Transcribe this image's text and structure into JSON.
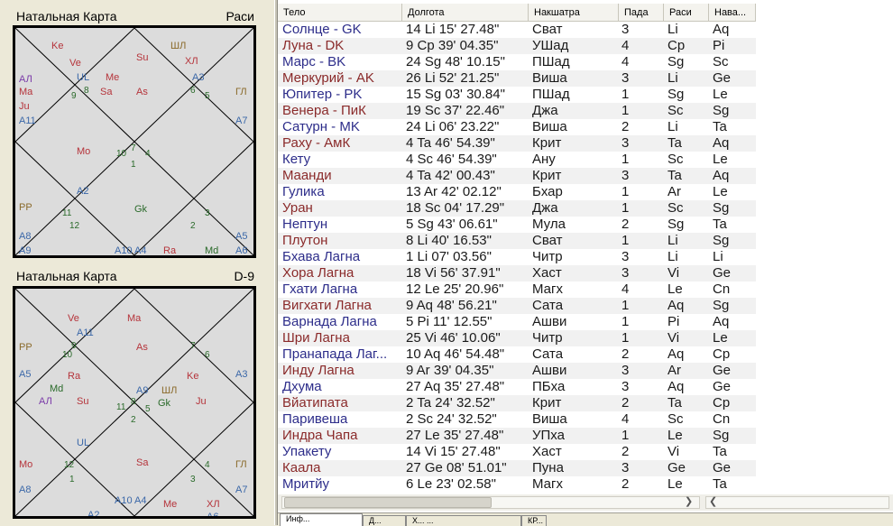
{
  "chart1": {
    "title": "Натальная Карта",
    "variant": "Раси",
    "labels": [
      {
        "t": "Ke",
        "c": "#b5333a"
      },
      {
        "t": "Su",
        "c": "#b5333a"
      },
      {
        "t": "ШЛ",
        "c": "#8a6a2a"
      },
      {
        "t": "Ve",
        "c": "#b5333a"
      },
      {
        "t": "XЛ",
        "c": "#b5333a"
      },
      {
        "t": "UL",
        "c": "#3a67a8"
      },
      {
        "t": "Me",
        "c": "#b5333a"
      },
      {
        "t": "A3",
        "c": "#3a67a8"
      },
      {
        "t": "АЛ",
        "c": "#7a3aa8"
      },
      {
        "t": "9",
        "c": "#2a6a2a"
      },
      {
        "t": "8",
        "c": "#2a6a2a"
      },
      {
        "t": "Sa",
        "c": "#b5333a"
      },
      {
        "t": "As",
        "c": "#b5333a"
      },
      {
        "t": "6",
        "c": "#2a6a2a"
      },
      {
        "t": "5",
        "c": "#2a6a2a"
      },
      {
        "t": "ГЛ",
        "c": "#8a6a2a"
      },
      {
        "t": "Ma",
        "c": "#b5333a"
      },
      {
        "t": "Ju",
        "c": "#b5333a"
      },
      {
        "t": "A11",
        "c": "#3a67a8"
      },
      {
        "t": "A7",
        "c": "#3a67a8"
      },
      {
        "t": "Mo",
        "c": "#b5333a"
      },
      {
        "t": "7",
        "c": "#2a6a2a"
      },
      {
        "t": "10",
        "c": "#2a6a2a"
      },
      {
        "t": "4",
        "c": "#2a6a2a"
      },
      {
        "t": "1",
        "c": "#2a6a2a"
      },
      {
        "t": "A2",
        "c": "#3a67a8"
      },
      {
        "t": "Gk",
        "c": "#2a6a2a"
      },
      {
        "t": "PP",
        "c": "#8a6a2a"
      },
      {
        "t": "11",
        "c": "#2a6a2a"
      },
      {
        "t": "3",
        "c": "#2a6a2a"
      },
      {
        "t": "12",
        "c": "#2a6a2a"
      },
      {
        "t": "2",
        "c": "#2a6a2a"
      },
      {
        "t": "A8",
        "c": "#3a67a8"
      },
      {
        "t": "A5",
        "c": "#3a67a8"
      },
      {
        "t": "A9",
        "c": "#3a67a8"
      },
      {
        "t": "A10 A4",
        "c": "#3a67a8"
      },
      {
        "t": "Ra",
        "c": "#b5333a"
      },
      {
        "t": "Md",
        "c": "#2a6a2a"
      },
      {
        "t": "A6",
        "c": "#3a67a8"
      }
    ]
  },
  "chart2": {
    "title": "Натальная Карта",
    "variant": "D-9",
    "labels": [
      {
        "t": "Ve",
        "c": "#b5333a"
      },
      {
        "t": "Ma",
        "c": "#b5333a"
      },
      {
        "t": "A11",
        "c": "#3a67a8"
      },
      {
        "t": "PP",
        "c": "#8a6a2a"
      },
      {
        "t": "9",
        "c": "#2a6a2a"
      },
      {
        "t": "10",
        "c": "#2a6a2a"
      },
      {
        "t": "As",
        "c": "#b5333a"
      },
      {
        "t": "7",
        "c": "#2a6a2a"
      },
      {
        "t": "6",
        "c": "#2a6a2a"
      },
      {
        "t": "A5",
        "c": "#3a67a8"
      },
      {
        "t": "Ra",
        "c": "#b5333a"
      },
      {
        "t": "Ke",
        "c": "#b5333a"
      },
      {
        "t": "A3",
        "c": "#3a67a8"
      },
      {
        "t": "Md",
        "c": "#2a6a2a"
      },
      {
        "t": "A9",
        "c": "#3a67a8"
      },
      {
        "t": "АЛ",
        "c": "#7a3aa8"
      },
      {
        "t": "Su",
        "c": "#b5333a"
      },
      {
        "t": "ШЛ",
        "c": "#8a6a2a"
      },
      {
        "t": "8",
        "c": "#2a6a2a"
      },
      {
        "t": "11",
        "c": "#2a6a2a"
      },
      {
        "t": "Gk",
        "c": "#2a6a2a"
      },
      {
        "t": "Ju",
        "c": "#b5333a"
      },
      {
        "t": "5",
        "c": "#2a6a2a"
      },
      {
        "t": "2",
        "c": "#2a6a2a"
      },
      {
        "t": "UL",
        "c": "#3a67a8"
      },
      {
        "t": "Mo",
        "c": "#b5333a"
      },
      {
        "t": "12",
        "c": "#2a6a2a"
      },
      {
        "t": "Sa",
        "c": "#b5333a"
      },
      {
        "t": "4",
        "c": "#2a6a2a"
      },
      {
        "t": "ГЛ",
        "c": "#8a6a2a"
      },
      {
        "t": "1",
        "c": "#2a6a2a"
      },
      {
        "t": "3",
        "c": "#2a6a2a"
      },
      {
        "t": "A8",
        "c": "#3a67a8"
      },
      {
        "t": "A10 A4",
        "c": "#3a67a8"
      },
      {
        "t": "A7",
        "c": "#3a67a8"
      },
      {
        "t": "Me",
        "c": "#b5333a"
      },
      {
        "t": "XЛ",
        "c": "#b5333a"
      },
      {
        "t": "A2",
        "c": "#3a67a8"
      },
      {
        "t": "A6",
        "c": "#3a67a8"
      }
    ]
  },
  "table": {
    "headers": [
      "Тело",
      "Долгота",
      "Накшатра",
      "Пада",
      "Раси",
      "Нава..."
    ],
    "rows": [
      {
        "name": "Солнце - GK",
        "lon": "14 Li 15' 27.48\"",
        "nak": "Сват",
        "pada": "3",
        "rasi": "Li",
        "nav": "Aq",
        "color": "#2d2d8a"
      },
      {
        "name": "Луна - DK",
        "lon": "9 Cp 39' 04.35\"",
        "nak": "УШад",
        "pada": "4",
        "rasi": "Cp",
        "nav": "Pi",
        "color": "#8a2a2a"
      },
      {
        "name": "Марс - BK",
        "lon": "24 Sg 48' 10.15\"",
        "nak": "ПШад",
        "pada": "4",
        "rasi": "Sg",
        "nav": "Sc",
        "color": "#2d2d8a"
      },
      {
        "name": "Меркурий - AK",
        "lon": "26 Li 52' 21.25\"",
        "nak": "Виша",
        "pada": "3",
        "rasi": "Li",
        "nav": "Ge",
        "color": "#8a2a2a"
      },
      {
        "name": "Юпитер - PK",
        "lon": "15 Sg 03' 30.84\"",
        "nak": "ПШад",
        "pada": "1",
        "rasi": "Sg",
        "nav": "Le",
        "color": "#2d2d8a"
      },
      {
        "name": "Венера - ПиК",
        "lon": "19 Sc 37' 22.46\"",
        "nak": "Джа",
        "pada": "1",
        "rasi": "Sc",
        "nav": "Sg",
        "color": "#8a2a2a"
      },
      {
        "name": "Сатурн - MK",
        "lon": "24 Li 06' 23.22\"",
        "nak": "Виша",
        "pada": "2",
        "rasi": "Li",
        "nav": "Ta",
        "color": "#2d2d8a"
      },
      {
        "name": "Раху - АмК",
        "lon": "4 Ta 46' 54.39\"",
        "nak": "Крит",
        "pada": "3",
        "rasi": "Ta",
        "nav": "Aq",
        "color": "#8a2a2a"
      },
      {
        "name": "Кету",
        "lon": "4 Sc 46' 54.39\"",
        "nak": "Ану",
        "pada": "1",
        "rasi": "Sc",
        "nav": "Le",
        "color": "#2d2d8a"
      },
      {
        "name": "Мaанди",
        "lon": "4 Ta 42' 00.43\"",
        "nak": "Крит",
        "pada": "3",
        "rasi": "Ta",
        "nav": "Aq",
        "color": "#8a2a2a"
      },
      {
        "name": "Гулика",
        "lon": "13 Ar 42' 02.12\"",
        "nak": "Бхар",
        "pada": "1",
        "rasi": "Ar",
        "nav": "Le",
        "color": "#2d2d8a"
      },
      {
        "name": "Уран",
        "lon": "18 Sc 04' 17.29\"",
        "nak": "Джа",
        "pada": "1",
        "rasi": "Sc",
        "nav": "Sg",
        "color": "#8a2a2a"
      },
      {
        "name": "Нептун",
        "lon": "5 Sg 43' 06.61\"",
        "nak": "Мула",
        "pada": "2",
        "rasi": "Sg",
        "nav": "Ta",
        "color": "#2d2d8a"
      },
      {
        "name": "Плутон",
        "lon": "8 Li 40' 16.53\"",
        "nak": "Сват",
        "pada": "1",
        "rasi": "Li",
        "nav": "Sg",
        "color": "#8a2a2a"
      },
      {
        "name": "Бхава Лагна",
        "lon": "1 Li 07' 03.56\"",
        "nak": "Читр",
        "pada": "3",
        "rasi": "Li",
        "nav": "Li",
        "color": "#2d2d8a"
      },
      {
        "name": "Хора Лагна",
        "lon": "18 Vi 56' 37.91\"",
        "nak": "Хаст",
        "pada": "3",
        "rasi": "Vi",
        "nav": "Ge",
        "color": "#8a2a2a"
      },
      {
        "name": "Гхати Лагна",
        "lon": "12 Le 25' 20.96\"",
        "nak": "Магх",
        "pada": "4",
        "rasi": "Le",
        "nav": "Cn",
        "color": "#2d2d8a"
      },
      {
        "name": "Вигхати Лагна",
        "lon": "9 Aq 48' 56.21\"",
        "nak": "Сата",
        "pada": "1",
        "rasi": "Aq",
        "nav": "Sg",
        "color": "#8a2a2a"
      },
      {
        "name": "Варнада Лагна",
        "lon": "5 Pi 11' 12.55\"",
        "nak": "Ашви",
        "pada": "1",
        "rasi": "Pi",
        "nav": "Aq",
        "color": "#2d2d8a"
      },
      {
        "name": "Шри Лагна",
        "lon": "25 Vi 46' 10.06\"",
        "nak": "Читр",
        "pada": "1",
        "rasi": "Vi",
        "nav": "Le",
        "color": "#8a2a2a"
      },
      {
        "name": "Пранапада Лаг...",
        "lon": "10 Aq 46' 54.48\"",
        "nak": "Сата",
        "pada": "2",
        "rasi": "Aq",
        "nav": "Cp",
        "color": "#2d2d8a"
      },
      {
        "name": "Инду Лагна",
        "lon": "9 Ar 39' 04.35\"",
        "nak": "Ашви",
        "pada": "3",
        "rasi": "Ar",
        "nav": "Ge",
        "color": "#8a2a2a"
      },
      {
        "name": "Дхума",
        "lon": "27 Aq 35' 27.48\"",
        "nak": "ПБха",
        "pada": "3",
        "rasi": "Aq",
        "nav": "Ge",
        "color": "#2d2d8a"
      },
      {
        "name": "Вйатипата",
        "lon": "2 Ta 24' 32.52\"",
        "nak": "Крит",
        "pada": "2",
        "rasi": "Ta",
        "nav": "Cp",
        "color": "#8a2a2a"
      },
      {
        "name": "Паривеша",
        "lon": "2 Sc 24' 32.52\"",
        "nak": "Виша",
        "pada": "4",
        "rasi": "Sc",
        "nav": "Cn",
        "color": "#2d2d8a"
      },
      {
        "name": "Индра Чапа",
        "lon": "27 Le 35' 27.48\"",
        "nak": "УПха",
        "pada": "1",
        "rasi": "Le",
        "nav": "Sg",
        "color": "#8a2a2a"
      },
      {
        "name": "Упакету",
        "lon": "14 Vi 15' 27.48\"",
        "nak": "Хаст",
        "pada": "2",
        "rasi": "Vi",
        "nav": "Ta",
        "color": "#2d2d8a"
      },
      {
        "name": "Каала",
        "lon": "27 Ge 08' 51.01\"",
        "nak": "Пуна",
        "pada": "3",
        "rasi": "Ge",
        "nav": "Ge",
        "color": "#8a2a2a"
      },
      {
        "name": "Мритйу",
        "lon": "6 Le 23' 02.58\"",
        "nak": "Магх",
        "pada": "2",
        "rasi": "Le",
        "nav": "Ta",
        "color": "#2d2d8a"
      }
    ]
  },
  "tabs": [
    "Инф...",
    "Д...",
    "Х... ...",
    "КР..."
  ],
  "icons": {
    "scroll_left": "chevron-left-icon",
    "scroll_right": "chevron-right-icon"
  }
}
